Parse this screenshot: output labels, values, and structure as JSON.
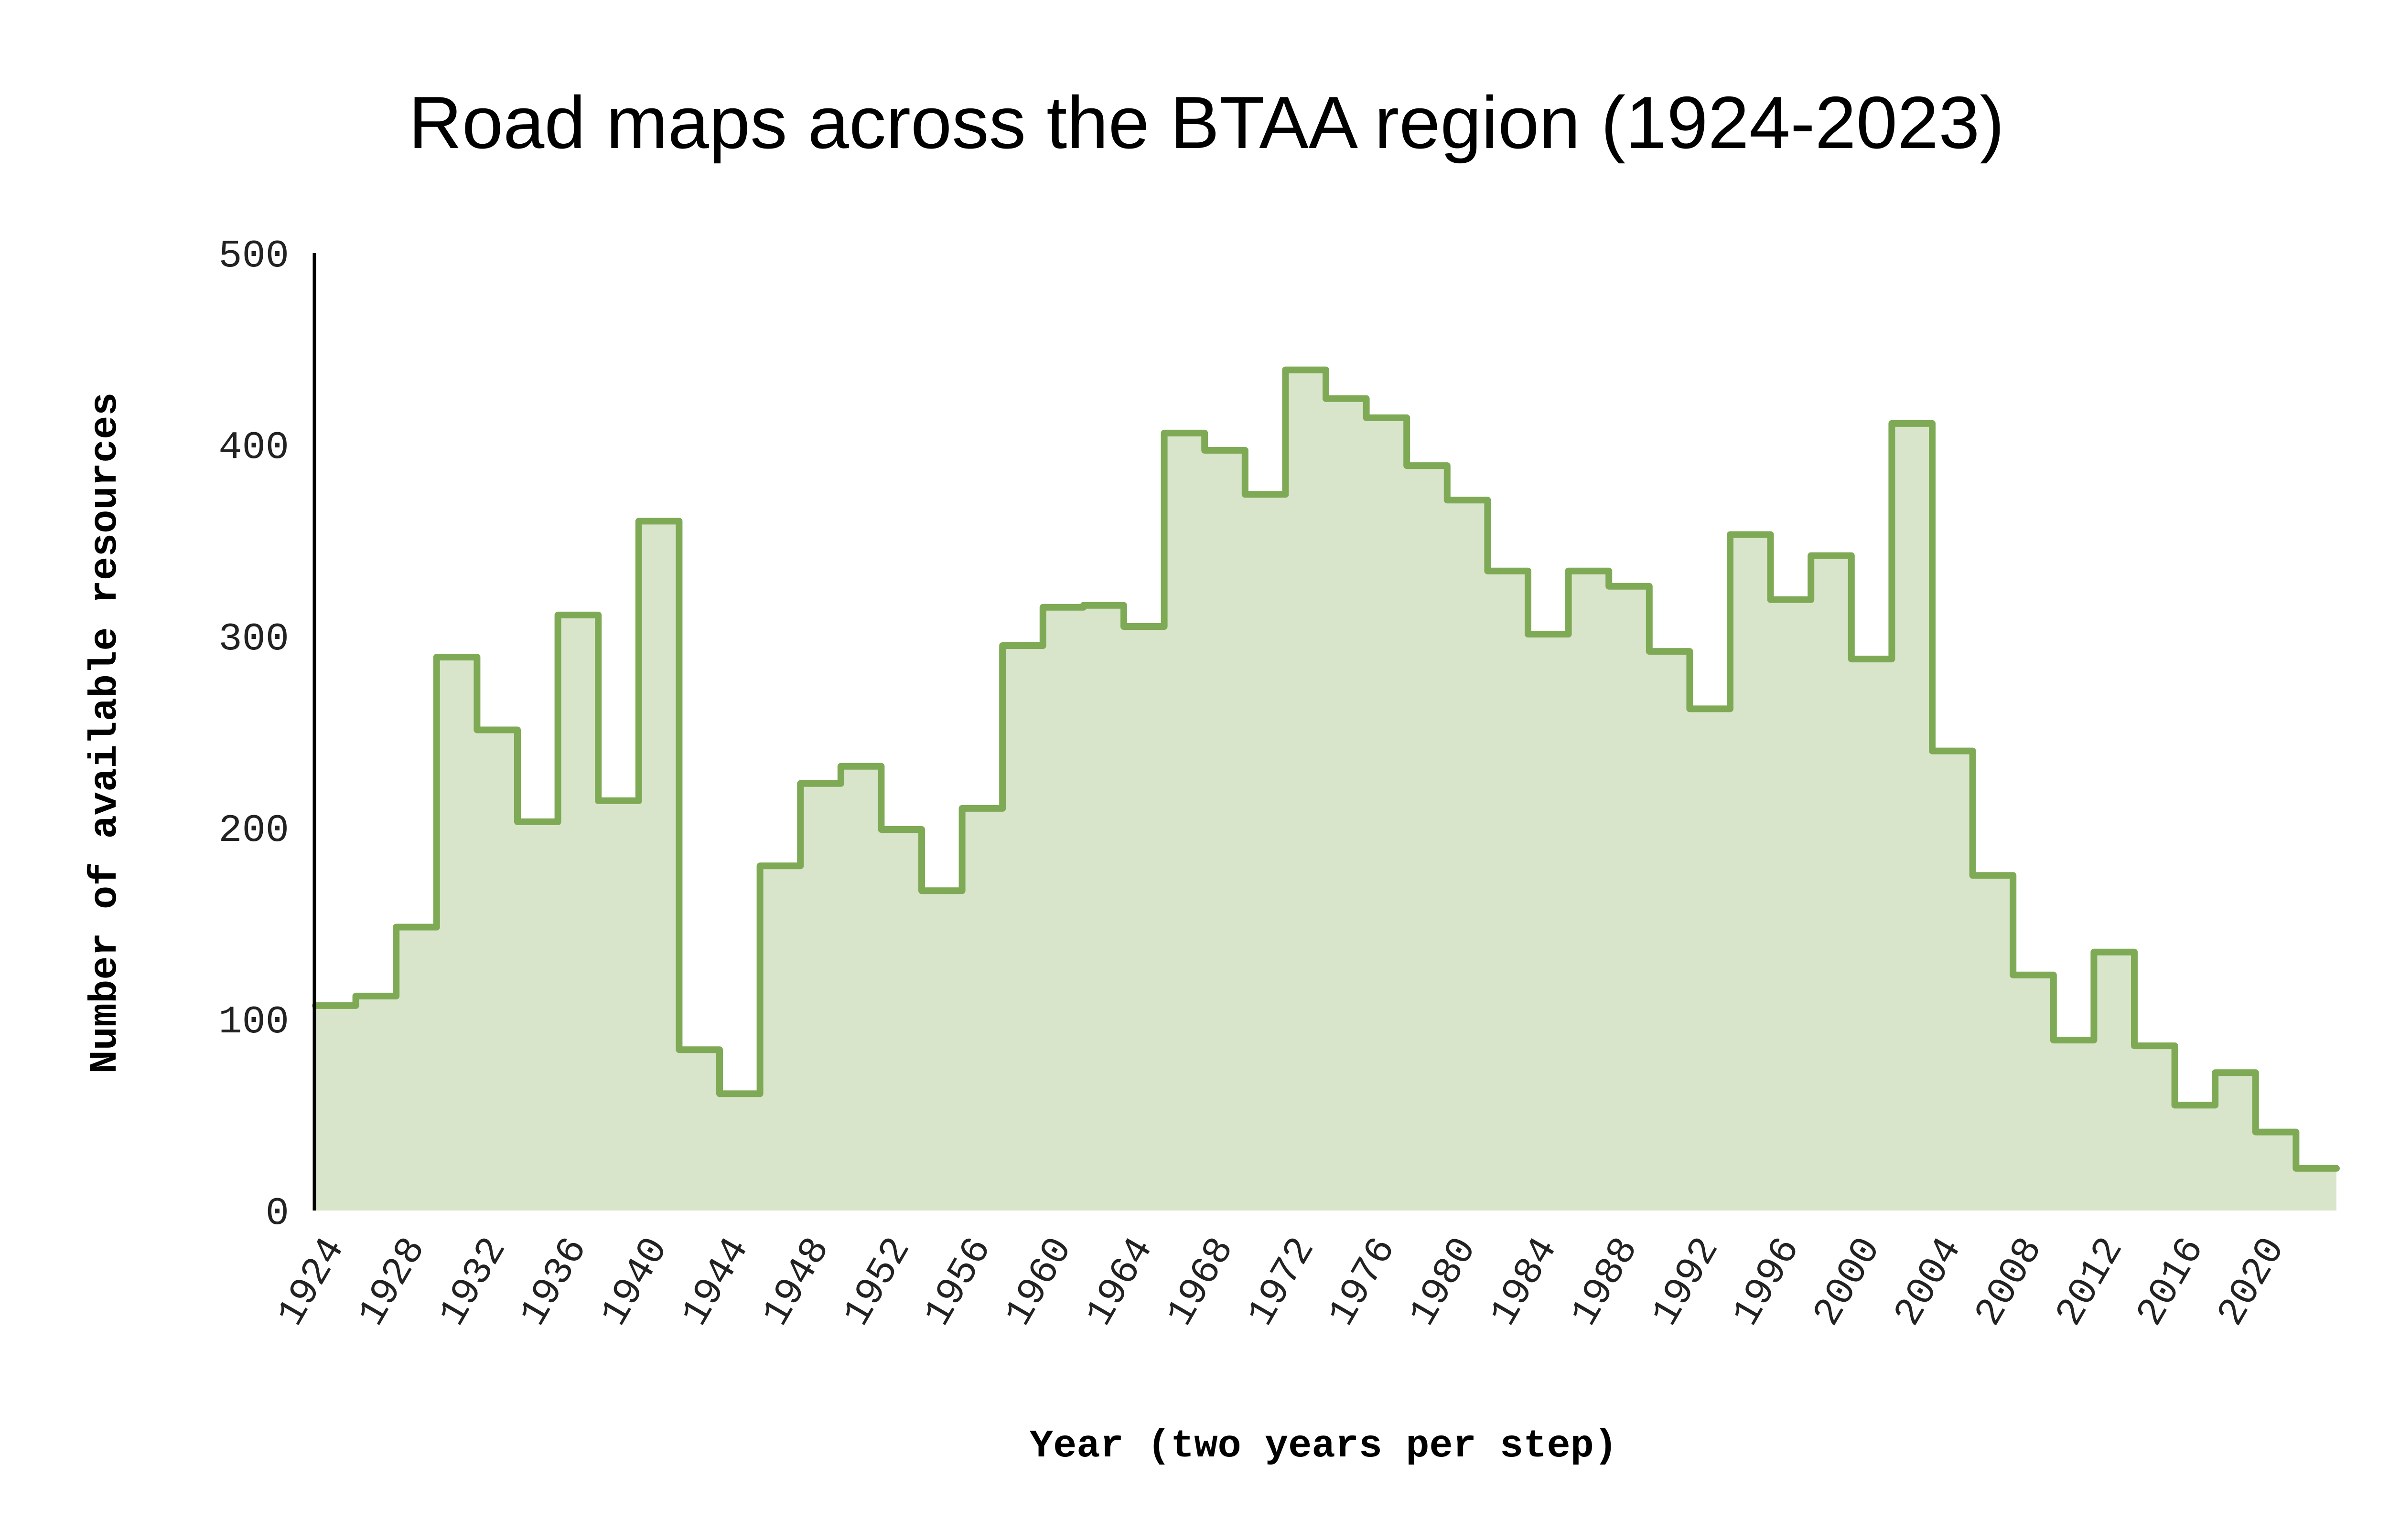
{
  "chart_data": {
    "type": "area",
    "step": true,
    "title": "Road maps across the BTAA region (1924-2023)",
    "xlabel": "Year (two years per step)",
    "ylabel": "Number of available resources",
    "ylim": [
      0,
      500
    ],
    "xlim": [
      1924,
      2024
    ],
    "yticks": [
      "0",
      "100",
      "200",
      "300",
      "400",
      "500"
    ],
    "xticks": [
      "1924",
      "1928",
      "1932",
      "1936",
      "1940",
      "1944",
      "1948",
      "1952",
      "1956",
      "1960",
      "1964",
      "1968",
      "1972",
      "1976",
      "1980",
      "1984",
      "1988",
      "1992",
      "1996",
      "2000",
      "2004",
      "2008",
      "2012",
      "2016",
      "2020"
    ],
    "grid": false,
    "legend": "none",
    "colors": {
      "line": "#7faa55",
      "fill": "#d9e5cb",
      "axis": "#000000"
    },
    "x": [
      1924,
      1926,
      1928,
      1930,
      1932,
      1934,
      1936,
      1938,
      1940,
      1942,
      1944,
      1946,
      1948,
      1950,
      1952,
      1954,
      1956,
      1958,
      1960,
      1962,
      1964,
      1966,
      1968,
      1970,
      1972,
      1974,
      1976,
      1978,
      1980,
      1982,
      1984,
      1986,
      1988,
      1990,
      1992,
      1994,
      1996,
      1998,
      2000,
      2002,
      2004,
      2006,
      2008,
      2010,
      2012,
      2014,
      2016,
      2018,
      2020,
      2022
    ],
    "values": [
      107,
      112,
      148,
      289,
      251,
      203,
      311,
      214,
      360,
      84,
      61,
      180,
      223,
      232,
      199,
      167,
      210,
      295,
      315,
      316,
      305,
      406,
      397,
      374,
      439,
      424,
      414,
      389,
      371,
      334,
      301,
      334,
      326,
      292,
      262,
      353,
      319,
      342,
      288,
      411,
      240,
      175,
      123,
      89,
      135,
      86,
      55,
      72,
      41,
      22
    ]
  }
}
